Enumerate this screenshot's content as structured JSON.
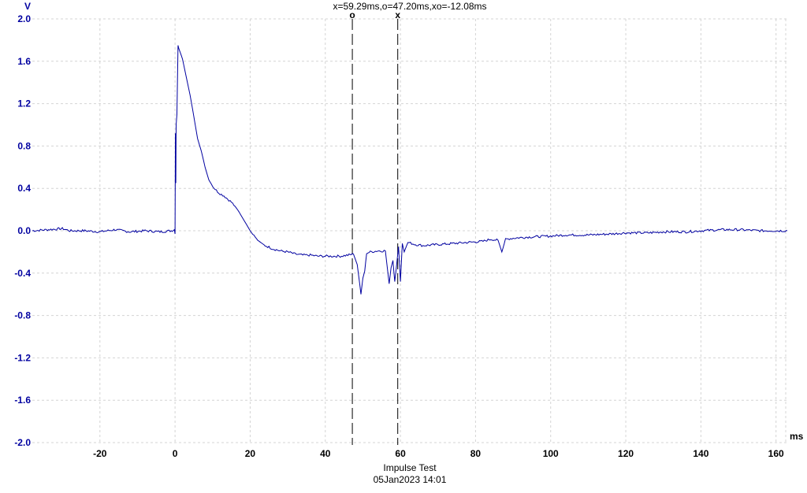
{
  "cursor_readout": "x=59.29ms,o=47.20ms,xo=-12.08ms",
  "footer": {
    "title": "Impulse Test",
    "datetime": "05Jan2023  14:01"
  },
  "colors": {
    "trace": "#0000a0",
    "yaxis_labels": "#0000a0",
    "grid": "#d4d4d4",
    "cursor": "#000000"
  },
  "chart_data": {
    "type": "line",
    "title": "",
    "xlabel": "ms",
    "ylabel": "V",
    "xlim": [
      -38,
      163
    ],
    "ylim": [
      -2.0,
      2.0
    ],
    "x_ticks": [
      -20,
      0,
      20,
      40,
      60,
      80,
      100,
      120,
      140,
      160
    ],
    "y_ticks": [
      "2.0",
      "1.6",
      "1.2",
      "0.8",
      "0.4",
      "0.0",
      "-0.4",
      "-0.8",
      "-1.2",
      "-1.6",
      "-2.0"
    ],
    "grid": true,
    "cursors": [
      {
        "marker": "o",
        "x": 47.2
      },
      {
        "marker": "x",
        "x": 59.29
      }
    ],
    "series": [
      {
        "color": "#0000a0",
        "x": [
          -38,
          -34,
          -30,
          -28,
          -24,
          -20,
          -16,
          -12,
          -8,
          -4,
          -1,
          -0.2,
          0,
          0.1,
          0.2,
          0.3,
          0.5,
          0.8,
          1.0,
          2,
          3,
          4,
          5,
          6,
          7,
          8,
          9,
          10,
          11,
          12,
          13,
          14,
          15,
          16,
          17,
          18,
          19,
          20,
          21,
          22,
          24,
          26,
          28,
          30,
          32,
          34,
          36,
          38,
          40,
          42,
          44,
          46,
          47.5,
          48.5,
          49.5,
          50,
          50.5,
          51,
          52,
          54,
          56,
          57,
          57.5,
          58,
          58.5,
          59,
          59.5,
          60,
          60.5,
          61,
          62,
          64,
          66,
          70,
          74,
          78,
          82,
          84,
          86,
          87,
          88,
          90,
          94,
          100,
          104,
          110,
          116,
          120,
          126,
          130,
          136,
          140,
          146,
          150,
          156,
          160,
          163
        ],
        "values": [
          0.0,
          0.01,
          0.02,
          0.0,
          0.0,
          -0.01,
          0.01,
          -0.01,
          0.0,
          -0.01,
          0.0,
          0.01,
          -0.03,
          0.92,
          0.45,
          1.0,
          1.1,
          1.76,
          1.72,
          1.62,
          1.45,
          1.28,
          1.08,
          0.87,
          0.75,
          0.6,
          0.48,
          0.42,
          0.38,
          0.35,
          0.33,
          0.3,
          0.27,
          0.23,
          0.18,
          0.12,
          0.06,
          0.0,
          -0.05,
          -0.09,
          -0.14,
          -0.17,
          -0.19,
          -0.2,
          -0.22,
          -0.23,
          -0.23,
          -0.24,
          -0.24,
          -0.24,
          -0.24,
          -0.23,
          -0.22,
          -0.32,
          -0.6,
          -0.45,
          -0.38,
          -0.21,
          -0.2,
          -0.19,
          -0.19,
          -0.5,
          -0.35,
          -0.28,
          -0.48,
          -0.32,
          -0.15,
          -0.48,
          -0.12,
          -0.2,
          -0.11,
          -0.13,
          -0.14,
          -0.13,
          -0.12,
          -0.11,
          -0.1,
          -0.08,
          -0.09,
          -0.2,
          -0.08,
          -0.07,
          -0.06,
          -0.05,
          -0.04,
          -0.04,
          -0.03,
          -0.02,
          -0.02,
          -0.01,
          -0.01,
          0.0,
          0.01,
          0.01,
          0.0,
          0.0,
          0.0
        ]
      }
    ]
  }
}
